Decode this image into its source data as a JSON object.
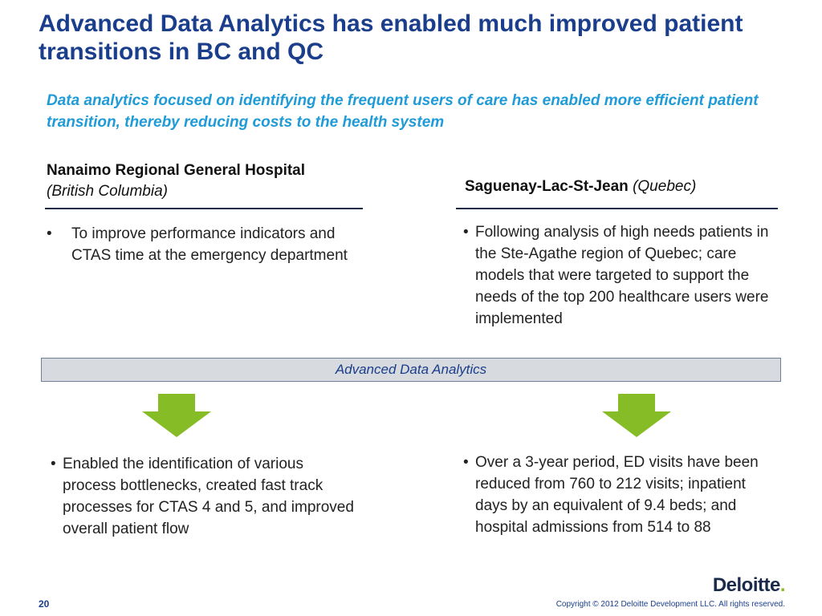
{
  "slide": {
    "title": "Advanced Data Analytics has enabled much improved patient transitions in BC and QC",
    "subtitle": "Data analytics focused on identifying the frequent users of care has enabled more efficient patient transition, thereby reducing costs to the health system",
    "band_label": "Advanced Data Analytics",
    "page_number": "20",
    "copyright": "Copyright © 2012 Deloitte Development LLC. All rights reserved.",
    "logo_text": "Deloitte",
    "logo_dot": "."
  },
  "left": {
    "heading": "Nanaimo Regional General Hospital",
    "heading_sub": "(British Columbia)",
    "before": "To improve performance indicators and CTAS time at the emergency department",
    "after": "Enabled the identification of various process bottlenecks, created fast track processes for CTAS 4 and 5, and improved overall patient flow"
  },
  "right": {
    "heading": "Saguenay-Lac-St-Jean",
    "heading_sub": "(Quebec)",
    "before": "Following analysis of high needs patients in the Ste-Agathe region of Quebec; care models that were targeted to support the needs of the top 200 healthcare users were implemented",
    "after": "Over a 3-year period, ED visits have been reduced from 760 to 212 visits; inpatient days by an equivalent of 9.4 beds; and hospital admissions from 514 to 88"
  },
  "bullet_char": "•",
  "colors": {
    "title": "#1a3e8c",
    "subtitle": "#1f9bd7",
    "arrow": "#86bc25",
    "band_fill": "#d7dade",
    "logo_dot": "#86bc25"
  },
  "icons": {
    "arrow": "down-arrow-icon",
    "logo": "deloitte-logo"
  }
}
